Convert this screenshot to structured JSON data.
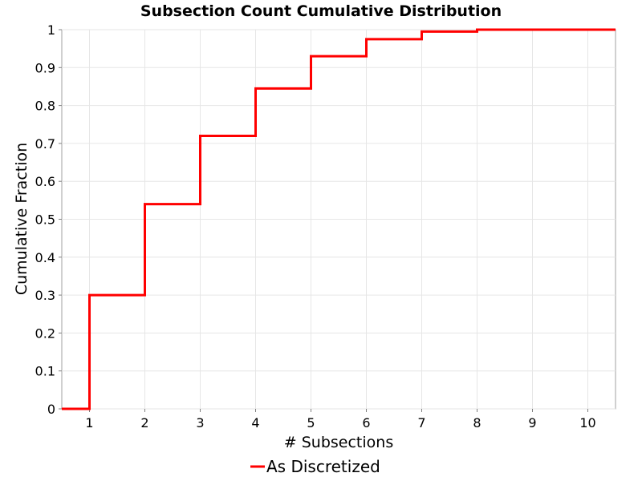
{
  "chart_data": {
    "type": "line",
    "step": true,
    "title": "Subsection Count Cumulative Distribution",
    "xlabel": "# Subsections",
    "ylabel": "Cumulative Fraction",
    "xlim": [
      0.5,
      10.5
    ],
    "ylim": [
      0,
      1
    ],
    "xticks": [
      1,
      2,
      3,
      4,
      5,
      6,
      7,
      8,
      9,
      10
    ],
    "yticks": [
      0,
      0.1,
      0.2,
      0.3,
      0.4,
      0.5,
      0.6,
      0.7,
      0.8,
      0.9,
      1
    ],
    "ytick_labels": [
      "0",
      "0.1",
      "0.2",
      "0.3",
      "0.4",
      "0.5",
      "0.6",
      "0.7",
      "0.8",
      "0.9",
      "1"
    ],
    "grid": true,
    "legend_position": "bottom",
    "series": [
      {
        "name": "As Discretized",
        "color": "#ff0000",
        "x": [
          0.5,
          1,
          2,
          3,
          4,
          5,
          6,
          7,
          8,
          10.5
        ],
        "y": [
          0,
          0.3,
          0.54,
          0.72,
          0.845,
          0.93,
          0.975,
          0.995,
          1.0,
          1.0
        ]
      }
    ]
  }
}
